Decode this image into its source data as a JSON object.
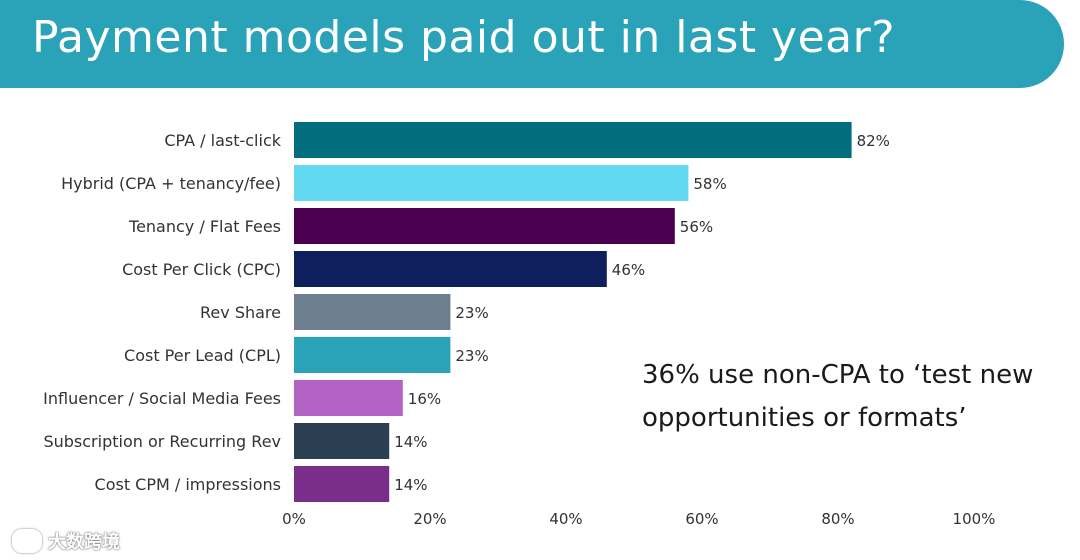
{
  "title": "Payment models paid out in last year?",
  "annotation": "36% use non-CPA to ‘test new opportunities or formats’",
  "watermark": "大数跨境",
  "chart_data": {
    "type": "bar",
    "orientation": "horizontal",
    "title": "Payment models paid out in last year?",
    "categories": [
      "CPA / last-click",
      "Hybrid (CPA + tenancy/fee)",
      "Tenancy / Flat Fees",
      "Cost Per Click (CPC)",
      "Rev Share",
      "Cost Per Lead (CPL)",
      "Influencer / Social Media Fees",
      "Subscription or Recurring Rev",
      "Cost CPM / impressions"
    ],
    "values": [
      82,
      58,
      56,
      46,
      23,
      23,
      16,
      14,
      14
    ],
    "data_labels": [
      "82%",
      "58%",
      "56%",
      "46%",
      "23%",
      "23%",
      "16%",
      "14%",
      "14%"
    ],
    "colors": [
      "#026e7d",
      "#63d8f1",
      "#4b0050",
      "#0f1f5e",
      "#6d7e8e",
      "#2aa3b8",
      "#b263c4",
      "#2b3e52",
      "#7a2d89"
    ],
    "xlim": [
      0,
      100
    ],
    "xticks": [
      "0%",
      "20%",
      "40%",
      "60%",
      "80%",
      "100%"
    ],
    "xlabel": "",
    "ylabel": "",
    "grid": false,
    "legend": "none"
  }
}
